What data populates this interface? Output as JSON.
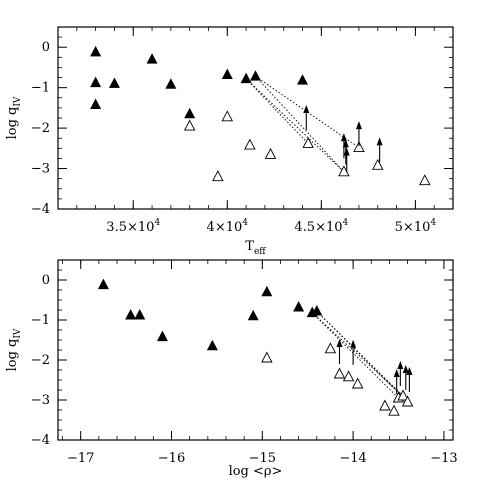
{
  "chart_data": [
    {
      "type": "scatter",
      "xlabel": "T",
      "xlabel_sub": "eff",
      "ylabel": "log q",
      "ylabel_sub": "IV",
      "xlim": [
        31000,
        52000
      ],
      "ylim": [
        -4,
        0.5
      ],
      "x_ticks": [
        {
          "value": 35000,
          "mant": "3.5",
          "base": "10",
          "exp": "4"
        },
        {
          "value": 40000,
          "mant": "4",
          "base": "10",
          "exp": "4"
        },
        {
          "value": 45000,
          "mant": "4.5",
          "base": "10",
          "exp": "4"
        },
        {
          "value": 50000,
          "mant": "5",
          "base": "10",
          "exp": "4"
        }
      ],
      "y_ticks": [
        {
          "value": 0,
          "label": "0"
        },
        {
          "value": -1,
          "label": "−1"
        },
        {
          "value": -2,
          "label": "−2"
        },
        {
          "value": -3,
          "label": "−3"
        },
        {
          "value": -4,
          "label": "−4"
        }
      ],
      "series": [
        {
          "marker": "filled-triangle",
          "points": [
            [
              33000,
              -0.12
            ],
            [
              33000,
              -0.88
            ],
            [
              33000,
              -1.42
            ],
            [
              34000,
              -0.9
            ],
            [
              36000,
              -0.3
            ],
            [
              37000,
              -0.92
            ],
            [
              38000,
              -1.65
            ],
            [
              40000,
              -0.68
            ],
            [
              41000,
              -0.78
            ],
            [
              41500,
              -0.72
            ],
            [
              44000,
              -0.82
            ]
          ]
        },
        {
          "marker": "open-triangle",
          "points": [
            [
              38000,
              -1.95
            ],
            [
              39500,
              -3.2
            ],
            [
              40000,
              -1.72
            ],
            [
              41200,
              -2.42
            ],
            [
              42300,
              -2.65
            ],
            [
              44300,
              -2.38
            ],
            [
              46200,
              -3.08
            ],
            [
              47000,
              -2.48
            ],
            [
              48000,
              -2.92
            ],
            [
              50500,
              -3.3
            ]
          ]
        },
        {
          "marker": "upper-limit-arrow",
          "points": [
            [
              44200,
              -1.75
            ],
            [
              46200,
              -2.45
            ],
            [
              46300,
              -2.6
            ],
            [
              46350,
              -2.8
            ],
            [
              47000,
              -2.15
            ],
            [
              48100,
              -2.55
            ]
          ]
        }
      ],
      "connectors": [
        [
          [
            41000,
            -0.78
          ],
          [
            44300,
            -2.38
          ]
        ],
        [
          [
            41000,
            -0.78
          ],
          [
            46200,
            -3.08
          ]
        ],
        [
          [
            41500,
            -0.72
          ],
          [
            46200,
            -3.08
          ]
        ],
        [
          [
            41500,
            -0.72
          ],
          [
            47000,
            -2.48
          ]
        ]
      ]
    },
    {
      "type": "scatter",
      "xlabel": "log <ρ>",
      "ylabel": "log q",
      "ylabel_sub": "IV",
      "xlim": [
        -17.25,
        -12.9
      ],
      "ylim": [
        -4,
        0.5
      ],
      "x_ticks": [
        {
          "value": -17,
          "label": "−17"
        },
        {
          "value": -16,
          "label": "−16"
        },
        {
          "value": -15,
          "label": "−15"
        },
        {
          "value": -14,
          "label": "−14"
        },
        {
          "value": -13,
          "label": "−13"
        }
      ],
      "y_ticks": [
        {
          "value": 0,
          "label": "0"
        },
        {
          "value": -1,
          "label": "−1"
        },
        {
          "value": -2,
          "label": "−2"
        },
        {
          "value": -3,
          "label": "−3"
        },
        {
          "value": -4,
          "label": "−4"
        }
      ],
      "series": [
        {
          "marker": "filled-triangle",
          "points": [
            [
              -16.75,
              -0.12
            ],
            [
              -16.45,
              -0.88
            ],
            [
              -16.35,
              -0.88
            ],
            [
              -16.1,
              -1.42
            ],
            [
              -15.55,
              -1.65
            ],
            [
              -15.1,
              -0.9
            ],
            [
              -14.95,
              -0.3
            ],
            [
              -14.6,
              -0.68
            ],
            [
              -14.45,
              -0.82
            ],
            [
              -14.4,
              -0.78
            ]
          ]
        },
        {
          "marker": "open-triangle",
          "points": [
            [
              -14.95,
              -1.95
            ],
            [
              -14.25,
              -1.72
            ],
            [
              -14.15,
              -2.35
            ],
            [
              -14.05,
              -2.42
            ],
            [
              -13.95,
              -2.6
            ],
            [
              -13.65,
              -3.15
            ],
            [
              -13.55,
              -3.28
            ],
            [
              -13.5,
              -2.95
            ],
            [
              -13.45,
              -2.9
            ],
            [
              -13.4,
              -3.05
            ]
          ]
        },
        {
          "marker": "upper-limit-arrow",
          "points": [
            [
              -14.15,
              -1.8
            ],
            [
              -14.0,
              -1.82
            ],
            [
              -13.52,
              -2.55
            ],
            [
              -13.48,
              -2.35
            ],
            [
              -13.42,
              -2.45
            ],
            [
              -13.38,
              -2.5
            ]
          ]
        }
      ],
      "connectors": [
        [
          [
            -14.45,
            -0.82
          ],
          [
            -13.45,
            -2.9
          ]
        ],
        [
          [
            -14.45,
            -0.82
          ],
          [
            -13.5,
            -2.95
          ]
        ],
        [
          [
            -14.4,
            -0.78
          ],
          [
            -13.4,
            -3.05
          ]
        ],
        [
          [
            -14.4,
            -0.78
          ],
          [
            -13.45,
            -2.9
          ]
        ]
      ]
    }
  ]
}
